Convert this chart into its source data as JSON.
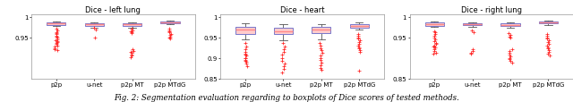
{
  "title_left": "Dice - left lung",
  "title_center": "Dice - heart",
  "title_right": "Dice - right lung",
  "caption": "Fig. 2: Segmentation evaluation regarding to boxplots of Dice scores of tested methods.",
  "x_labels": [
    "p2p",
    "u-net",
    "p2p MT",
    "p2p MTdG"
  ],
  "left_lung": {
    "medians": [
      0.984,
      0.981,
      0.981,
      0.987
    ],
    "q1": [
      0.98,
      0.977,
      0.977,
      0.984
    ],
    "q3": [
      0.986,
      0.983,
      0.983,
      0.989
    ],
    "whisker_low": [
      0.977,
      0.974,
      0.974,
      0.981
    ],
    "whisker_high": [
      0.989,
      0.986,
      0.985,
      0.991
    ],
    "outliers_y": [
      [
        0.97,
        0.967,
        0.963,
        0.96,
        0.957,
        0.954,
        0.951,
        0.948,
        0.945,
        0.942,
        0.939,
        0.936,
        0.933,
        0.93,
        0.927,
        0.924,
        0.921,
        0.918,
        0.94
      ],
      [
        0.972,
        0.969,
        0.95
      ],
      [
        0.965,
        0.962,
        0.959,
        0.92,
        0.917,
        0.914,
        0.911,
        0.908,
        0.905,
        0.902,
        0.97,
        0.967
      ],
      [
        0.97,
        0.967,
        0.964,
        0.961,
        0.958,
        0.955,
        0.952,
        0.949,
        0.946
      ]
    ],
    "ylim": [
      0.85,
      1.005
    ],
    "yticks": [
      0.95,
      1.0
    ],
    "ytick_labels": [
      "0.95",
      "1"
    ]
  },
  "heart": {
    "medians": [
      0.968,
      0.965,
      0.968,
      0.978
    ],
    "q1": [
      0.958,
      0.958,
      0.96,
      0.974
    ],
    "q3": [
      0.975,
      0.973,
      0.975,
      0.982
    ],
    "whisker_low": [
      0.945,
      0.943,
      0.945,
      0.968
    ],
    "whisker_high": [
      0.983,
      0.981,
      0.982,
      0.987
    ],
    "outliers_y": [
      [
        0.935,
        0.928,
        0.921,
        0.914,
        0.907,
        0.9,
        0.893,
        0.886,
        0.88,
        0.91,
        0.905,
        0.9,
        0.895,
        0.89
      ],
      [
        0.935,
        0.928,
        0.921,
        0.914,
        0.907,
        0.9,
        0.893,
        0.886,
        0.879,
        0.872,
        0.865
      ],
      [
        0.935,
        0.93,
        0.924,
        0.918,
        0.912,
        0.906,
        0.9,
        0.894,
        0.888,
        0.882,
        0.876,
        0.87
      ],
      [
        0.958,
        0.954,
        0.95,
        0.946,
        0.942,
        0.938,
        0.934,
        0.93,
        0.926,
        0.922,
        0.918,
        0.914,
        0.868
      ]
    ],
    "ylim": [
      0.85,
      1.005
    ],
    "yticks": [
      0.85,
      0.9,
      0.95,
      1.0
    ],
    "ytick_labels": [
      "0.85",
      "0.9",
      "0.95",
      "1"
    ]
  },
  "right_lung": {
    "medians": [
      0.982,
      0.981,
      0.98,
      0.986
    ],
    "q1": [
      0.978,
      0.979,
      0.977,
      0.983
    ],
    "q3": [
      0.985,
      0.984,
      0.983,
      0.989
    ],
    "whisker_low": [
      0.975,
      0.976,
      0.974,
      0.98
    ],
    "whisker_high": [
      0.988,
      0.987,
      0.986,
      0.991
    ],
    "outliers_y": [
      [
        0.965,
        0.961,
        0.957,
        0.953,
        0.949,
        0.945,
        0.941,
        0.937,
        0.933,
        0.929,
        0.925,
        0.921,
        0.917,
        0.913,
        0.909,
        0.927
      ],
      [
        0.966,
        0.962,
        0.921,
        0.917,
        0.913,
        0.909
      ],
      [
        0.96,
        0.956,
        0.952,
        0.948,
        0.92,
        0.916,
        0.912,
        0.908,
        0.904,
        0.9,
        0.896,
        0.892,
        0.888
      ],
      [
        0.958,
        0.954,
        0.95,
        0.946,
        0.942,
        0.938,
        0.934,
        0.93,
        0.926,
        0.922,
        0.918,
        0.914,
        0.91,
        0.906
      ]
    ],
    "ylim": [
      0.85,
      1.005
    ],
    "yticks": [
      0.85,
      0.95,
      1.0
    ],
    "ytick_labels": [
      "0.85",
      "0.95",
      "1"
    ]
  },
  "box_facecolor": "#FFCCCC",
  "box_edgecolor": "#7777CC",
  "median_color": "#FF8888",
  "whisker_color": "#555555",
  "outlier_color": "#FF2222",
  "outlier_marker": "+",
  "background_color": "#FFFFFF",
  "title_fontsize": 6.0,
  "tick_fontsize": 5.0,
  "caption_fontsize": 6.2
}
